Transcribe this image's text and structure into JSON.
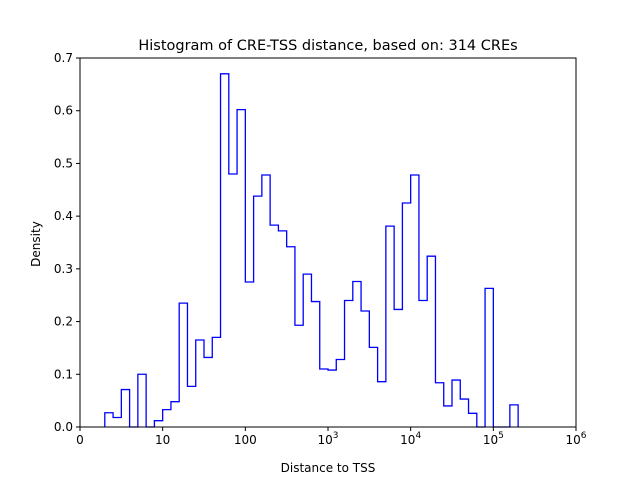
{
  "chart_data": {
    "type": "histogram",
    "title": "Histogram of CRE-TSS distance, based on: 314 CREs",
    "xlabel": "Distance to TSS",
    "ylabel": "Density",
    "xscale": "log",
    "xlim_log10": [
      0,
      6
    ],
    "ylim": [
      0,
      0.7
    ],
    "x_ticks": [
      {
        "pos_log10": 0,
        "base": "0",
        "exp": ""
      },
      {
        "pos_log10": 1,
        "base": "10",
        "exp": ""
      },
      {
        "pos_log10": 2,
        "base": "100",
        "exp": ""
      },
      {
        "pos_log10": 3,
        "base": "10",
        "exp": "3"
      },
      {
        "pos_log10": 4,
        "base": "10",
        "exp": "4"
      },
      {
        "pos_log10": 5,
        "base": "10",
        "exp": "5"
      },
      {
        "pos_log10": 6,
        "base": "10",
        "exp": "6"
      }
    ],
    "y_ticks": [
      "0.0",
      "0.1",
      "0.2",
      "0.3",
      "0.4",
      "0.5",
      "0.6",
      "0.7"
    ],
    "bin_start_log10": 0.3,
    "bin_width_log10": 0.1,
    "density": [
      0.027,
      0.018,
      0.071,
      0,
      0.1,
      0,
      0.012,
      0.033,
      0.048,
      0.235,
      0.077,
      0.165,
      0.132,
      0.17,
      0.67,
      0.48,
      0.602,
      0.275,
      0.438,
      0.478,
      0.383,
      0.372,
      0.342,
      0.193,
      0.29,
      0.238,
      0.11,
      0.108,
      0.128,
      0.24,
      0.276,
      0.22,
      0.151,
      0.086,
      0.381,
      0.223,
      0.425,
      0.478,
      0.24,
      0.324,
      0.084,
      0.04,
      0.089,
      0.053,
      0.026,
      0,
      0.263,
      0,
      0,
      0.042
    ],
    "line_color": "#0000ff",
    "grid": false
  }
}
